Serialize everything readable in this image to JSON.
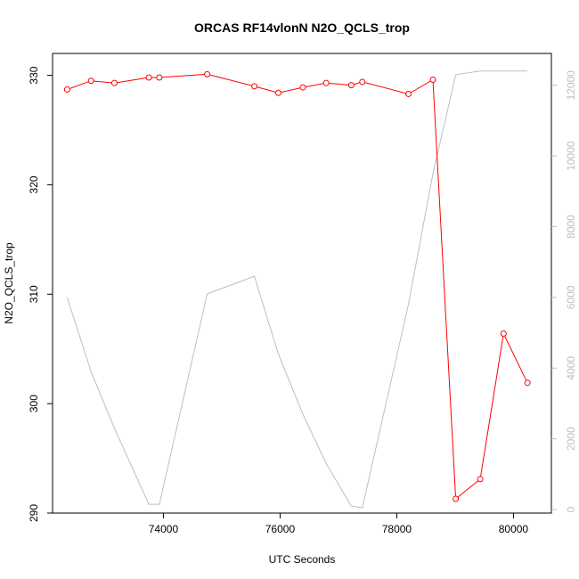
{
  "chart_data": {
    "type": "line",
    "title": "ORCAS RF14vlonN N2O_QCLS_trop",
    "xlabel": "UTC Seconds",
    "ylabel": "N2O_QCLS_trop",
    "xlim": [
      72100,
      80650
    ],
    "ylim": [
      290,
      332
    ],
    "y2lim": [
      -100,
      12900
    ],
    "x_ticks": [
      74000,
      76000,
      78000,
      80000
    ],
    "y_ticks": [
      290,
      300,
      310,
      320,
      330
    ],
    "y2_ticks": [
      0,
      2000,
      4000,
      6000,
      8000,
      10000,
      12000
    ],
    "colors": {
      "primary": "#ff0000",
      "secondary": "#bebebe",
      "axis": "#000000",
      "secondary_axis": "#bebebe"
    },
    "series": [
      {
        "axis": "left",
        "style": "line-with-circles",
        "x": [
          72350,
          72760,
          73160,
          73750,
          73930,
          74750,
          75560,
          75970,
          76390,
          76790,
          77220,
          77410,
          78200,
          78620,
          79010,
          79430,
          79830,
          80240
        ],
        "y": [
          328.7,
          329.5,
          329.3,
          329.8,
          329.8,
          330.1,
          329.0,
          328.4,
          328.9,
          329.3,
          329.1,
          329.4,
          328.3,
          329.6,
          291.3,
          293.1,
          306.4,
          301.9
        ]
      },
      {
        "axis": "right",
        "style": "line",
        "x": [
          72350,
          72760,
          73160,
          73750,
          73930,
          74750,
          75560,
          75970,
          76390,
          76790,
          77220,
          77410,
          78200,
          78620,
          79010,
          79430,
          79830,
          80240
        ],
        "y": [
          6000,
          3900,
          2300,
          150,
          150,
          6100,
          6600,
          4400,
          2700,
          1300,
          100,
          50,
          5800,
          9500,
          12300,
          12400,
          12400,
          12400
        ]
      }
    ]
  }
}
